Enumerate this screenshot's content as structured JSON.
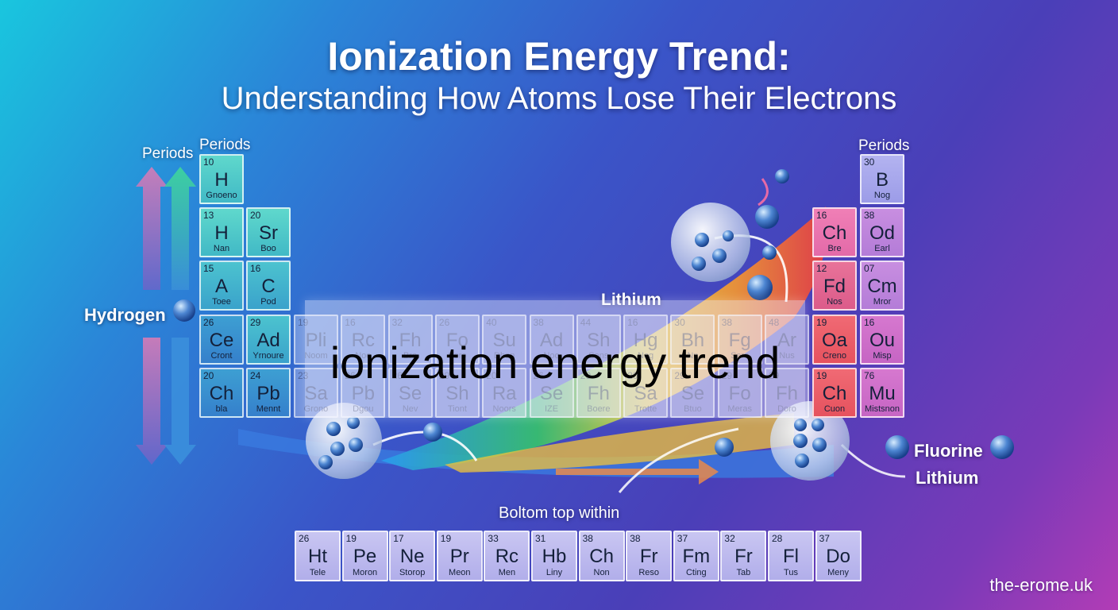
{
  "title": "Ionization Energy Trend:",
  "subtitle": "Understanding How Atoms Lose Their Electrons",
  "labels": {
    "periods_outer": "Periods",
    "periods_left": "Periods",
    "periods_right": "Periods",
    "hydrogen": "Hydrogen",
    "lithium_top": "Lithium",
    "fluorine": "Fluorine",
    "lithium_right": "Lithium",
    "bottom_caption": "Boltom top within"
  },
  "overlay_text": "ionization energy trend",
  "watermark": "the-erome.uk",
  "left_cells": [
    {
      "num": "10",
      "sym": "H",
      "name": "Gnoeno"
    },
    {
      "num": "13",
      "sym": "H",
      "name": "Nan"
    },
    {
      "num": "20",
      "sym": "Sr",
      "name": "Boo"
    },
    {
      "num": "15",
      "sym": "A",
      "name": "Toee"
    },
    {
      "num": "16",
      "sym": "C",
      "name": "Pod"
    },
    {
      "num": "26",
      "sym": "Ce",
      "name": "Cront"
    },
    {
      "num": "29",
      "sym": "Ad",
      "name": "Yrnoure"
    },
    {
      "num": "20",
      "sym": "Ch",
      "name": "bla"
    },
    {
      "num": "24",
      "sym": "Pb",
      "name": "Mennt"
    }
  ],
  "right_cells": [
    {
      "num": "30",
      "sym": "B",
      "name": "Nog"
    },
    {
      "num": "16",
      "sym": "Ch",
      "name": "Bre"
    },
    {
      "num": "38",
      "sym": "Od",
      "name": "Earl"
    },
    {
      "num": "12",
      "sym": "Fd",
      "name": "Nos"
    },
    {
      "num": "07",
      "sym": "Cm",
      "name": "Mror"
    },
    {
      "num": "19",
      "sym": "Oa",
      "name": "Creno"
    },
    {
      "num": "16",
      "sym": "Ou",
      "name": "Misp"
    },
    {
      "num": "19",
      "sym": "Ch",
      "name": "Cuon"
    },
    {
      "num": "76",
      "sym": "Mu",
      "name": "Mistsnon"
    }
  ],
  "middle_row1": [
    {
      "num": "19",
      "sym": "Pli",
      "name": "Noom"
    },
    {
      "num": "16",
      "sym": "Rc",
      "name": "Noo"
    },
    {
      "num": "32",
      "sym": "Fh",
      "name": "Bro"
    },
    {
      "num": "26",
      "sym": "Fo",
      "name": "Sero"
    },
    {
      "num": "40",
      "sym": "Su",
      "name": "Dhon"
    },
    {
      "num": "38",
      "sym": "Ad",
      "name": "Noo"
    },
    {
      "num": "44",
      "sym": "Sh",
      "name": "Sons"
    },
    {
      "num": "16",
      "sym": "Hg",
      "name": "Nog"
    },
    {
      "num": "30",
      "sym": "Bh",
      "name": "Nn"
    },
    {
      "num": "38",
      "sym": "Fg",
      "name": "Sero"
    },
    {
      "num": "48",
      "sym": "Ar",
      "name": "Nus"
    }
  ],
  "middle_row2": [
    {
      "num": "23",
      "sym": "Sa",
      "name": "Grono"
    },
    {
      "num": "26",
      "sym": "Pb",
      "name": "Dgou"
    },
    {
      "num": "26",
      "sym": "Se",
      "name": "Nev"
    },
    {
      "num": "29",
      "sym": "Sh",
      "name": "Tiont"
    },
    {
      "num": "20",
      "sym": "Ra",
      "name": "Noors"
    },
    {
      "num": "26",
      "sym": "Se",
      "name": "IZE"
    },
    {
      "num": "29",
      "sym": "Fh",
      "name": "Boere"
    },
    {
      "num": "20",
      "sym": "Sa",
      "name": "Trotte"
    },
    {
      "num": "29",
      "sym": "Se",
      "name": "Btuo"
    },
    {
      "num": "29",
      "sym": "Fo",
      "name": "Meras"
    },
    {
      "num": "29",
      "sym": "Fh",
      "name": "Doro"
    }
  ],
  "bottom_row": [
    {
      "num": "26",
      "sym": "Ht",
      "name": "Tele"
    },
    {
      "num": "19",
      "sym": "Pe",
      "name": "Moron"
    },
    {
      "num": "17",
      "sym": "Ne",
      "name": "Storop"
    },
    {
      "num": "19",
      "sym": "Pr",
      "name": "Meon"
    },
    {
      "num": "33",
      "sym": "Rc",
      "name": "Men"
    },
    {
      "num": "31",
      "sym": "Hb",
      "name": "Liny"
    },
    {
      "num": "38",
      "sym": "Ch",
      "name": "Non"
    },
    {
      "num": "38",
      "sym": "Fr",
      "name": "Reso"
    },
    {
      "num": "37",
      "sym": "Fm",
      "name": "Cting"
    },
    {
      "num": "32",
      "sym": "Fr",
      "name": "Tab"
    },
    {
      "num": "28",
      "sym": "Fl",
      "name": "Tus"
    },
    {
      "num": "37",
      "sym": "Do",
      "name": "Meny"
    }
  ]
}
